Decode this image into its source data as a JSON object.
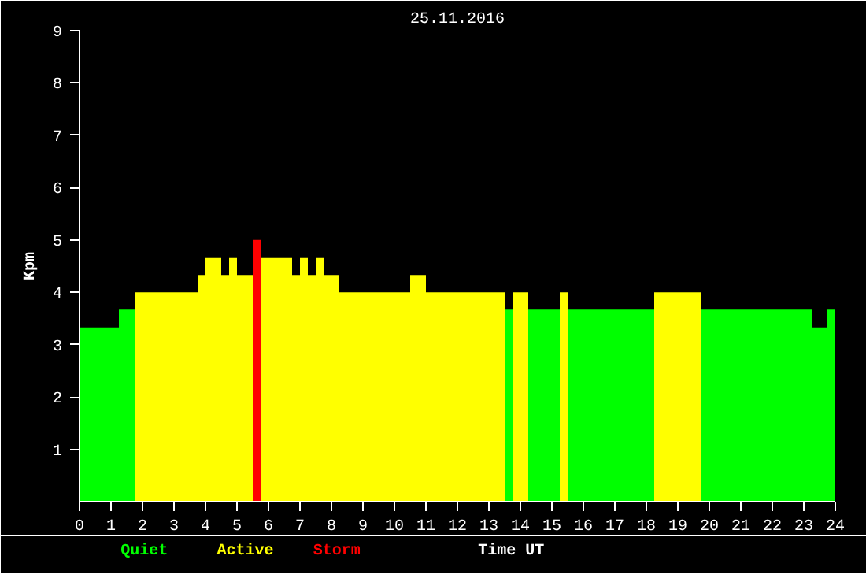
{
  "chart_data": {
    "type": "histogram",
    "title": "25.11.2016",
    "xlabel": "Time UT",
    "ylabel": "Kpm",
    "bins": [
      0,
      1.25,
      1.75,
      3.75,
      4,
      4.5,
      4.75,
      5,
      5.5,
      5.75,
      6.75,
      7,
      7.25,
      7.5,
      7.75,
      8.25,
      10.5,
      11,
      13.5,
      13.75,
      14.25,
      15.25,
      15.5,
      18.25,
      19.75,
      23.25,
      23.75,
      24
    ],
    "series": [
      {
        "name": "Quiet",
        "color": "#00ff00",
        "values": [
          3.33,
          3.67,
          null,
          null,
          null,
          null,
          null,
          null,
          null,
          null,
          null,
          null,
          null,
          null,
          null,
          null,
          null,
          null,
          3.67,
          null,
          3.67,
          null,
          3.67,
          null,
          3.67,
          3.33,
          3.67
        ]
      },
      {
        "name": "Active",
        "color": "#ffff00",
        "values": [
          null,
          null,
          4,
          4.33,
          4.67,
          4.33,
          4.67,
          4.33,
          null,
          4.67,
          4.33,
          4.67,
          4.33,
          4.67,
          4.33,
          4,
          4.33,
          4,
          null,
          4,
          null,
          4,
          null,
          4,
          null,
          null,
          null
        ]
      },
      {
        "name": "Storm",
        "color": "#ff0000",
        "values": [
          null,
          null,
          null,
          null,
          null,
          null,
          null,
          null,
          5,
          null,
          null,
          null,
          null,
          null,
          null,
          null,
          null,
          null,
          null,
          null,
          null,
          null,
          null,
          null,
          null,
          null,
          null
        ]
      }
    ],
    "xlim": [
      0,
      24
    ],
    "xticks": [
      0,
      1,
      2,
      3,
      4,
      5,
      6,
      7,
      8,
      9,
      10,
      11,
      12,
      13,
      14,
      15,
      16,
      17,
      18,
      19,
      20,
      21,
      22,
      23,
      24
    ],
    "ylim": [
      0,
      9
    ],
    "yticks": [
      1,
      2,
      3,
      4,
      5,
      6,
      7,
      8,
      9
    ],
    "grid": false
  }
}
